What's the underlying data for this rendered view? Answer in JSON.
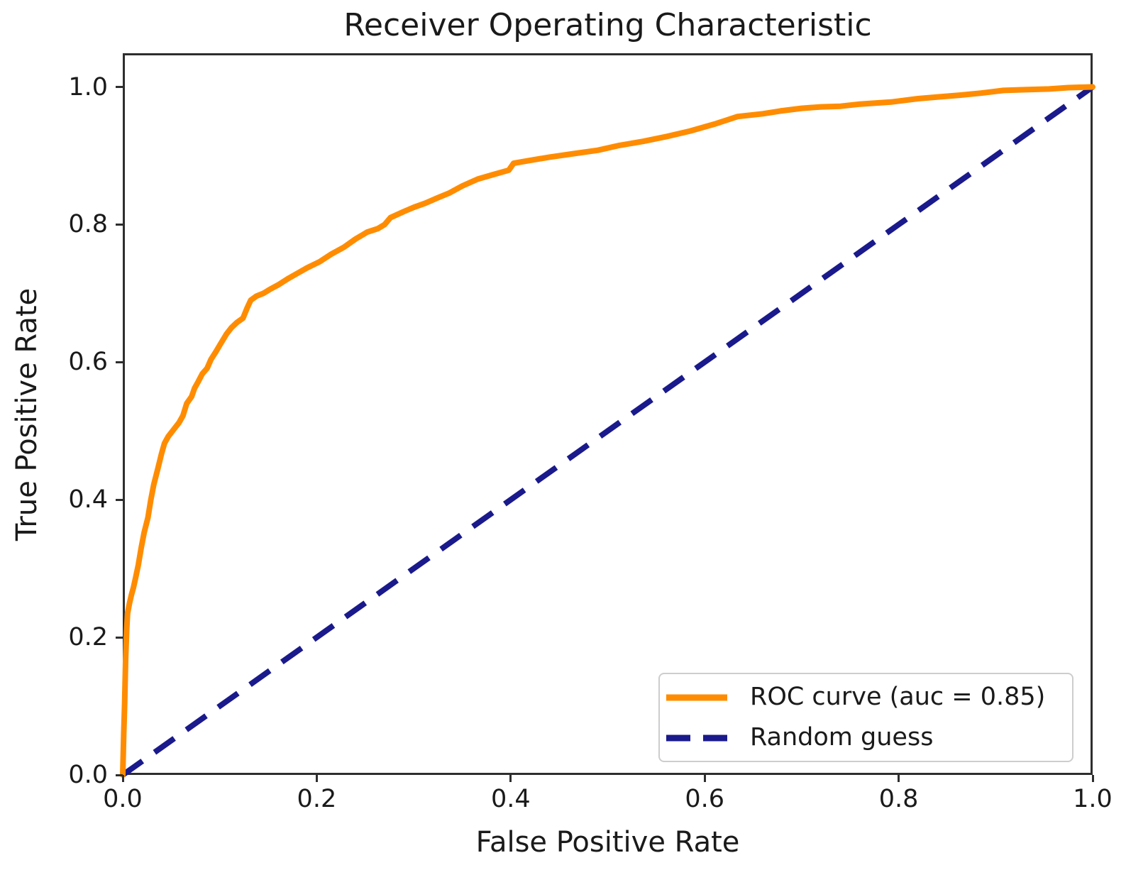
{
  "figure": {
    "title": "Receiver Operating Characteristic",
    "xlabel": "False Positive Rate",
    "ylabel": "True Positive Rate",
    "colors": {
      "background": "#ffffff",
      "spine": "#2e2e2e",
      "text": "#1a1a1a",
      "legend_border": "#cdcdcd",
      "roc_curve": "#ff8c00",
      "random_guess": "#1a1a8c"
    }
  },
  "chart_data": {
    "type": "line",
    "title": "Receiver Operating Characteristic",
    "xlabel": "False Positive Rate",
    "ylabel": "True Positive Rate",
    "xlim": [
      0,
      1.0
    ],
    "ylim": [
      0,
      1.049
    ],
    "grid": false,
    "legend_position": "lower right",
    "x_ticks": [
      0.0,
      0.2,
      0.4,
      0.6,
      0.8,
      1.0
    ],
    "y_ticks": [
      0.0,
      0.2,
      0.4,
      0.6,
      0.8,
      1.0
    ],
    "x_tick_labels": [
      "0.0",
      "0.2",
      "0.4",
      "0.6",
      "0.8",
      "1.0"
    ],
    "y_tick_labels": [
      "0.0",
      "0.2",
      "0.4",
      "0.6",
      "0.8",
      "1.0"
    ],
    "auc": 0.85,
    "series": [
      {
        "name": "ROC curve (auc = 0.85)",
        "color": "#ff8c00",
        "style": "solid",
        "line_width": 8,
        "points": [
          [
            0.0,
            0.0
          ],
          [
            0.001,
            0.06
          ],
          [
            0.002,
            0.105
          ],
          [
            0.003,
            0.17
          ],
          [
            0.004,
            0.21
          ],
          [
            0.005,
            0.235
          ],
          [
            0.007,
            0.25
          ],
          [
            0.009,
            0.262
          ],
          [
            0.011,
            0.272
          ],
          [
            0.013,
            0.285
          ],
          [
            0.016,
            0.305
          ],
          [
            0.019,
            0.33
          ],
          [
            0.022,
            0.352
          ],
          [
            0.026,
            0.374
          ],
          [
            0.029,
            0.4
          ],
          [
            0.032,
            0.422
          ],
          [
            0.036,
            0.444
          ],
          [
            0.04,
            0.467
          ],
          [
            0.043,
            0.482
          ],
          [
            0.047,
            0.492
          ],
          [
            0.053,
            0.503
          ],
          [
            0.058,
            0.512
          ],
          [
            0.062,
            0.522
          ],
          [
            0.066,
            0.54
          ],
          [
            0.071,
            0.55
          ],
          [
            0.074,
            0.562
          ],
          [
            0.078,
            0.572
          ],
          [
            0.082,
            0.583
          ],
          [
            0.087,
            0.591
          ],
          [
            0.091,
            0.604
          ],
          [
            0.096,
            0.615
          ],
          [
            0.101,
            0.627
          ],
          [
            0.107,
            0.641
          ],
          [
            0.112,
            0.65
          ],
          [
            0.118,
            0.658
          ],
          [
            0.124,
            0.664
          ],
          [
            0.128,
            0.678
          ],
          [
            0.132,
            0.69
          ],
          [
            0.138,
            0.696
          ],
          [
            0.145,
            0.7
          ],
          [
            0.152,
            0.706
          ],
          [
            0.16,
            0.712
          ],
          [
            0.17,
            0.721
          ],
          [
            0.18,
            0.729
          ],
          [
            0.19,
            0.737
          ],
          [
            0.203,
            0.746
          ],
          [
            0.215,
            0.757
          ],
          [
            0.228,
            0.767
          ],
          [
            0.24,
            0.779
          ],
          [
            0.252,
            0.789
          ],
          [
            0.263,
            0.794
          ],
          [
            0.27,
            0.8
          ],
          [
            0.276,
            0.81
          ],
          [
            0.29,
            0.819
          ],
          [
            0.3,
            0.825
          ],
          [
            0.312,
            0.831
          ],
          [
            0.325,
            0.839
          ],
          [
            0.337,
            0.846
          ],
          [
            0.35,
            0.856
          ],
          [
            0.366,
            0.866
          ],
          [
            0.383,
            0.873
          ],
          [
            0.398,
            0.879
          ],
          [
            0.403,
            0.889
          ],
          [
            0.415,
            0.892
          ],
          [
            0.44,
            0.898
          ],
          [
            0.465,
            0.903
          ],
          [
            0.49,
            0.908
          ],
          [
            0.512,
            0.915
          ],
          [
            0.537,
            0.921
          ],
          [
            0.561,
            0.928
          ],
          [
            0.585,
            0.936
          ],
          [
            0.61,
            0.946
          ],
          [
            0.634,
            0.957
          ],
          [
            0.66,
            0.961
          ],
          [
            0.678,
            0.965
          ],
          [
            0.7,
            0.969
          ],
          [
            0.72,
            0.971
          ],
          [
            0.74,
            0.972
          ],
          [
            0.76,
            0.975
          ],
          [
            0.792,
            0.978
          ],
          [
            0.82,
            0.983
          ],
          [
            0.845,
            0.986
          ],
          [
            0.863,
            0.988
          ],
          [
            0.885,
            0.991
          ],
          [
            0.908,
            0.995
          ],
          [
            0.93,
            0.996
          ],
          [
            0.955,
            0.997
          ],
          [
            0.975,
            0.999
          ],
          [
            1.0,
            1.0
          ]
        ]
      },
      {
        "name": "Random guess",
        "color": "#1a1a8c",
        "style": "dashed",
        "line_width": 8,
        "dash_pattern": [
          34,
          21
        ],
        "points": [
          [
            0.0,
            0.0
          ],
          [
            1.0,
            1.0
          ]
        ]
      }
    ]
  }
}
